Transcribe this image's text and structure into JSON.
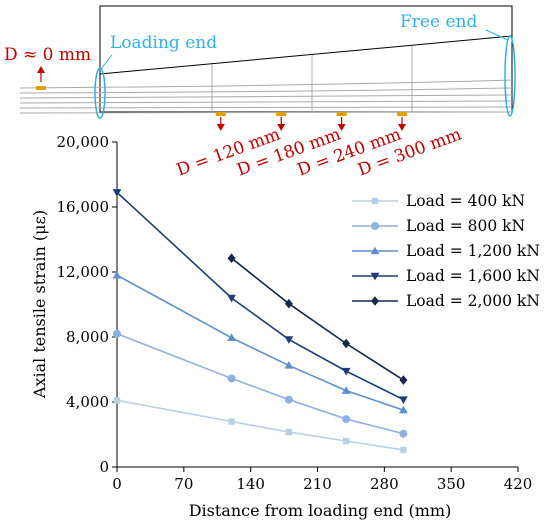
{
  "diagram": {
    "loading_end_label": "Loading end",
    "free_end_label": "Free end",
    "loading_end_disp": "D ≈ 0 mm",
    "displacements": [
      "D = 120 mm",
      "D = 180 mm",
      "D = 240 mm",
      "D = 300 mm"
    ],
    "label_color": "#c00000",
    "end_color": "#2fb0e8",
    "marker_color": "#e0a100"
  },
  "chart_data": {
    "type": "line",
    "xlabel": "Distance from loading end (mm)",
    "ylabel": "Axial tensile strain (με)",
    "xlim": [
      0,
      420
    ],
    "ylim": [
      0,
      20000
    ],
    "xticks": [
      0,
      70,
      140,
      210,
      280,
      350,
      420
    ],
    "yticks": [
      0,
      4000,
      8000,
      12000,
      16000,
      20000
    ],
    "xtick_labels": [
      "0",
      "70",
      "140",
      "210",
      "280",
      "350",
      "420"
    ],
    "ytick_labels": [
      "0",
      "4,000",
      "8,000",
      "12,000",
      "16,000",
      "20,000"
    ],
    "legend_position": "top-right",
    "series": [
      {
        "name": "Load = 400 kN",
        "color": "#b8cfe8",
        "marker": "square",
        "x": [
          0,
          120,
          180,
          240,
          300
        ],
        "y": [
          4100,
          2800,
          2150,
          1600,
          1050
        ]
      },
      {
        "name": "Load = 800 kN",
        "color": "#8fb1de",
        "marker": "circle",
        "x": [
          0,
          120,
          180,
          240,
          300
        ],
        "y": [
          8200,
          5450,
          4150,
          2950,
          2050
        ]
      },
      {
        "name": "Load = 1,200 kN",
        "color": "#5b8fd0",
        "marker": "triangle-up",
        "x": [
          0,
          120,
          180,
          240,
          300
        ],
        "y": [
          11800,
          7950,
          6250,
          4700,
          3500
        ]
      },
      {
        "name": "Load = 1,600 kN",
        "color": "#1f3d73",
        "marker": "triangle-down",
        "x": [
          0,
          120,
          180,
          240,
          300
        ],
        "y": [
          16900,
          10400,
          7850,
          5900,
          4150
        ]
      },
      {
        "name": "Load = 2,000 kN",
        "color": "#14284e",
        "marker": "diamond",
        "x": [
          120,
          180,
          240,
          300
        ],
        "y": [
          12850,
          10050,
          7600,
          5350
        ]
      }
    ]
  }
}
